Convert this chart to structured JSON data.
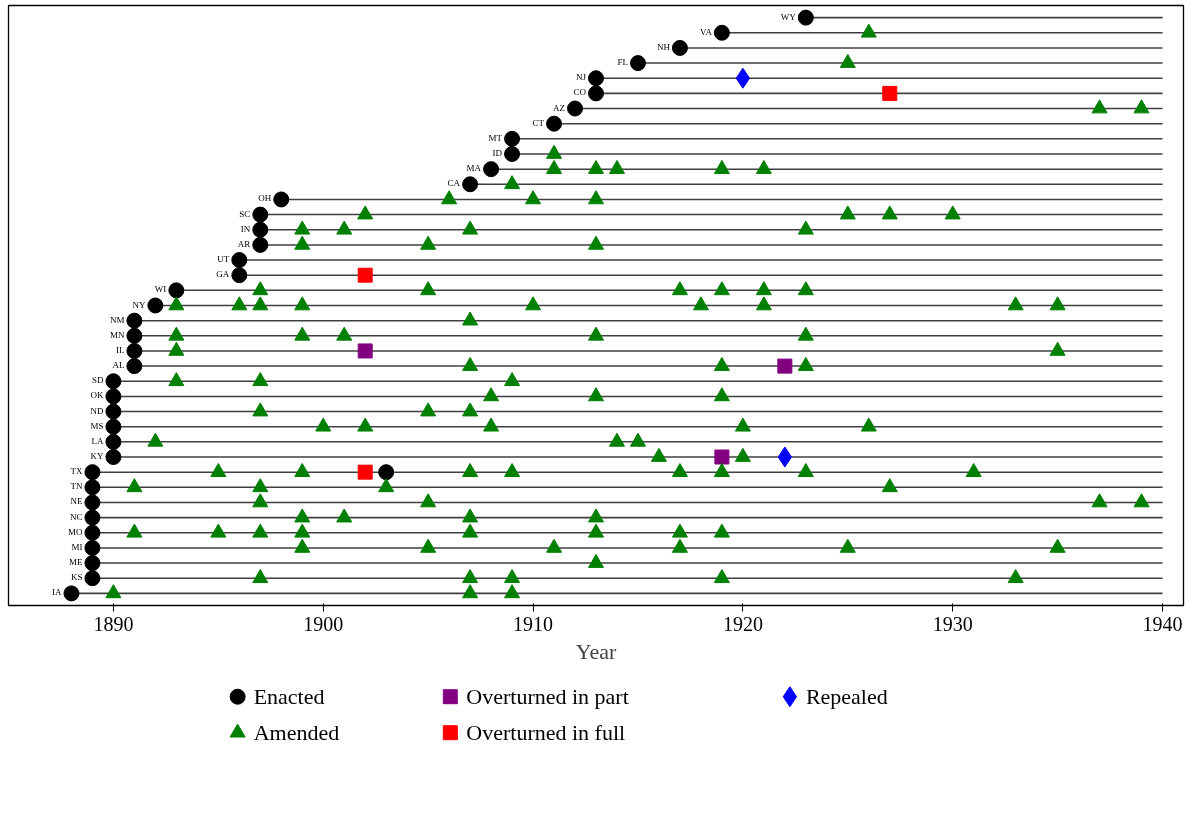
{
  "chart_data": {
    "type": "scatter",
    "orientation": "horizontal",
    "xlabel": "Year",
    "categories": [
      "WY",
      "VA",
      "NH",
      "FL",
      "NJ",
      "CO",
      "AZ",
      "CT",
      "MT",
      "ID",
      "MA",
      "CA",
      "OH",
      "SC",
      "IN",
      "AR",
      "UT",
      "GA",
      "WI",
      "NY",
      "NM",
      "MN",
      "IL",
      "AL",
      "SD",
      "OK",
      "ND",
      "MS",
      "LA",
      "KY",
      "TX",
      "TN",
      "NE",
      "NC",
      "MO",
      "MI",
      "ME",
      "KS",
      "IA"
    ],
    "xlim": [
      1885,
      1941
    ],
    "xticks": [
      1890,
      1900,
      1910,
      1920,
      1930,
      1940
    ],
    "tick_labels": "x",
    "legend": "bottom",
    "series": [
      {
        "type": "bar",
        "color": "#404040",
        "base": [
          1923,
          1919,
          1917,
          1915,
          1913,
          1913,
          1912,
          1911,
          1909,
          1909,
          1908,
          1907,
          1898,
          1897,
          1897,
          1897,
          1896,
          1896,
          1893,
          1892,
          1891,
          1891,
          1891,
          1891,
          1890,
          1890,
          1890,
          1890,
          1890,
          1890,
          1889,
          1889,
          1889,
          1889,
          1889,
          1889,
          1889,
          1889,
          1888
        ],
        "values": [
          17,
          21,
          23,
          25,
          27,
          27,
          28,
          29,
          31,
          31,
          32,
          33,
          42,
          43,
          43,
          43,
          44,
          44,
          47,
          48,
          49,
          49,
          49,
          49,
          50,
          50,
          50,
          50,
          50,
          50,
          51,
          51,
          51,
          51,
          51,
          51,
          51,
          51,
          52
        ]
      },
      {
        "name": "Enacted",
        "color": "#000000",
        "marker": "circle",
        "values": [
          1923,
          1919,
          1917,
          1915,
          1913,
          1913,
          1912,
          1911,
          1909,
          1909,
          1908,
          1907,
          1898,
          1897,
          1897,
          1897,
          1896,
          1896,
          1893,
          1892,
          1891,
          1891,
          1891,
          1891,
          1890,
          1890,
          1890,
          1890,
          1890,
          1890,
          1889,
          1889,
          1889,
          1889,
          1889,
          1889,
          1889,
          1889,
          1888
        ]
      },
      {
        "name": "Amended",
        "color": "#008000",
        "marker": "triangle",
        "values": [
          null,
          1926,
          null,
          1925,
          null,
          null,
          1937,
          null,
          null,
          1911,
          1911,
          1909,
          1906,
          1902,
          1899,
          1899,
          null,
          null,
          1897,
          1893,
          1907,
          1893,
          1893,
          1907,
          1893,
          1908,
          1897,
          1900,
          1892,
          1916,
          1895,
          1891,
          1897,
          1899,
          1891,
          1899,
          1913,
          1897,
          1890
        ]
      },
      {
        "name": "Overturned in part",
        "color": "#800080",
        "marker": "square",
        "values": [
          null,
          null,
          null,
          null,
          null,
          null,
          null,
          null,
          null,
          null,
          null,
          null,
          null,
          null,
          null,
          null,
          null,
          null,
          null,
          null,
          null,
          null,
          1902,
          1922,
          null,
          null,
          null,
          null,
          null,
          1919,
          null,
          null,
          null,
          null,
          null,
          null,
          null,
          null,
          null
        ]
      },
      {
        "name": "Overturned in full",
        "color": "#ff0000",
        "marker": "square",
        "values": [
          null,
          null,
          null,
          null,
          null,
          1927,
          null,
          null,
          null,
          null,
          null,
          null,
          null,
          null,
          null,
          null,
          null,
          1902,
          null,
          null,
          null,
          null,
          null,
          null,
          null,
          null,
          null,
          null,
          null,
          null,
          1902,
          null,
          null,
          null,
          null,
          null,
          null,
          null,
          null
        ]
      },
      {
        "name": "Repealed",
        "color": "#0000ff",
        "marker": "diamond",
        "values": [
          null,
          null,
          null,
          null,
          1920,
          null,
          null,
          null,
          null,
          null,
          null,
          null,
          null,
          null,
          null,
          null,
          null,
          null,
          null,
          null,
          null,
          null,
          null,
          null,
          null,
          null,
          null,
          null,
          null,
          1922,
          null,
          null,
          null,
          null,
          null,
          null,
          null,
          null,
          null
        ]
      },
      {
        "color": "#000000",
        "marker": "circle",
        "values": [
          null,
          null,
          null,
          null,
          null,
          null,
          null,
          null,
          null,
          null,
          null,
          null,
          null,
          null,
          null,
          null,
          null,
          null,
          null,
          null,
          null,
          null,
          null,
          null,
          null,
          null,
          null,
          null,
          null,
          null,
          1903,
          null,
          null,
          null,
          null,
          null,
          null,
          null,
          null
        ]
      },
      {
        "color": "#008000",
        "marker": "triangle",
        "values": [
          null,
          null,
          null,
          null,
          null,
          null,
          1939,
          null,
          null,
          null,
          1913,
          null,
          1910,
          1925,
          1901,
          1905,
          null,
          null,
          1905,
          1896,
          null,
          1899,
          1935,
          1919,
          1897,
          1913,
          1905,
          1902,
          1914,
          1920,
          1899,
          1897,
          1905,
          1901,
          1895,
          1905,
          null,
          1907,
          1907
        ]
      },
      {
        "color": "#008000",
        "marker": "triangle",
        "values": [
          null,
          null,
          null,
          null,
          null,
          null,
          null,
          null,
          null,
          null,
          1914,
          null,
          1913,
          1927,
          1907,
          1913,
          null,
          null,
          1917,
          1897,
          null,
          1901,
          null,
          1923,
          1909,
          1919,
          1907,
          1908,
          1915,
          null,
          1907,
          1903,
          1937,
          1907,
          1897,
          1911,
          null,
          1909,
          1909
        ]
      },
      {
        "color": "#008000",
        "marker": "triangle",
        "values": [
          null,
          null,
          null,
          null,
          null,
          null,
          null,
          null,
          null,
          null,
          1919,
          null,
          null,
          1930,
          1923,
          null,
          null,
          null,
          1919,
          1899,
          null,
          1913,
          null,
          null,
          null,
          null,
          null,
          1920,
          null,
          null,
          1909,
          1927,
          1939,
          1913,
          1899,
          1917,
          null,
          1919,
          null
        ]
      },
      {
        "color": "#008000",
        "marker": "triangle",
        "values": [
          null,
          null,
          null,
          null,
          null,
          null,
          null,
          null,
          null,
          null,
          1921,
          null,
          null,
          null,
          null,
          null,
          null,
          null,
          1921,
          1910,
          null,
          1923,
          null,
          null,
          null,
          null,
          null,
          1926,
          null,
          null,
          1917,
          null,
          null,
          null,
          1907,
          1925,
          null,
          1933,
          null
        ]
      },
      {
        "color": "#008000",
        "marker": "triangle",
        "values": [
          null,
          null,
          null,
          null,
          null,
          null,
          null,
          null,
          null,
          null,
          null,
          null,
          null,
          null,
          null,
          null,
          null,
          null,
          1923,
          1918,
          null,
          null,
          null,
          null,
          null,
          null,
          null,
          null,
          null,
          null,
          1919,
          null,
          null,
          null,
          1913,
          1935,
          null,
          null,
          null
        ]
      },
      {
        "color": "#008000",
        "marker": "triangle",
        "values": [
          null,
          null,
          null,
          null,
          null,
          null,
          null,
          null,
          null,
          null,
          null,
          null,
          null,
          null,
          null,
          null,
          null,
          null,
          null,
          1921,
          null,
          null,
          null,
          null,
          null,
          null,
          null,
          null,
          null,
          null,
          1923,
          null,
          null,
          null,
          1917,
          null,
          null,
          null,
          null
        ]
      },
      {
        "color": "#008000",
        "marker": "triangle",
        "values": [
          null,
          null,
          null,
          null,
          null,
          null,
          null,
          null,
          null,
          null,
          null,
          null,
          null,
          null,
          null,
          null,
          null,
          null,
          null,
          1933,
          null,
          null,
          null,
          null,
          null,
          null,
          null,
          null,
          null,
          null,
          1931,
          null,
          null,
          null,
          1919,
          null,
          null,
          null,
          null
        ]
      },
      {
        "color": "#008000",
        "marker": "triangle",
        "values": [
          null,
          null,
          null,
          null,
          null,
          null,
          null,
          null,
          null,
          null,
          null,
          null,
          null,
          null,
          null,
          null,
          null,
          null,
          null,
          1935,
          null,
          null,
          null,
          null,
          null,
          null,
          null,
          null,
          null,
          null,
          null,
          null,
          null,
          null,
          null,
          null,
          null,
          null,
          null
        ]
      }
    ]
  }
}
